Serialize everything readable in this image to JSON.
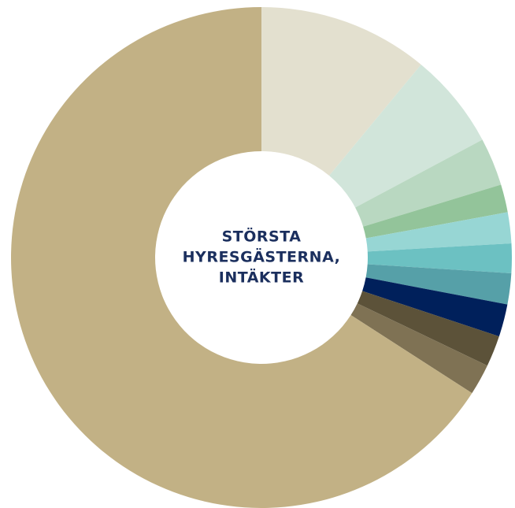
{
  "chart_data": {
    "type": "donut",
    "title": [
      "STÖRSTA",
      "HYRESGÄSTERNA,",
      "INTÄKTER"
    ],
    "values": [
      11,
      6.2,
      3.1,
      1.8,
      2,
      1.9,
      2,
      2.1,
      2,
      2,
      65.9
    ],
    "colors": [
      "#e3e0cf",
      "#d1e5da",
      "#b9d8c1",
      "#93c49a",
      "#97d6d4",
      "#6cc1c2",
      "#56a0a8",
      "#00205b",
      "#5c5239",
      "#7f7254",
      "#c2b185"
    ],
    "title_color": "#1b2f5e"
  }
}
